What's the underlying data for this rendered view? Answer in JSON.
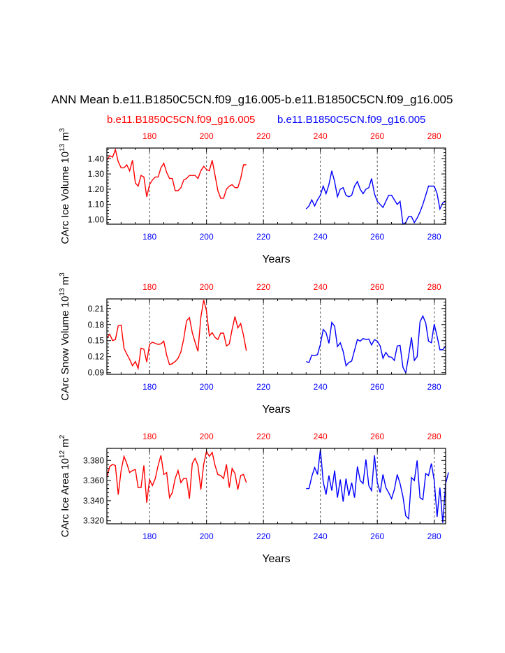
{
  "title": "ANN Mean b.e11.B1850C5CN.f09_g16.005-b.e11.B1850C5CN.f09_g16.005",
  "legend": {
    "case1": "b.e11.B1850C5CN.f09_g16.005",
    "case2": "b.e11.B1850C5CN.f09_g16.005"
  },
  "colors": {
    "case1": "#ff0000",
    "case2": "#0000ff",
    "axis": "#000000",
    "grid": "#555555"
  },
  "chart_data": [
    {
      "type": "line",
      "title": "",
      "ylabel": "CArc Ice Volume",
      "ylabel_unit": "10",
      "ylabel_exp": "13",
      "ylabel_unit2": "m",
      "ylabel_unit2_exp": "3",
      "xlabel": "Years",
      "xlim": [
        165,
        284
      ],
      "ylim": [
        0.97,
        1.47
      ],
      "yticks": [
        1.0,
        1.1,
        1.2,
        1.3,
        1.4
      ],
      "ytick_labels": [
        "1.00",
        "1.10",
        "1.20",
        "1.30",
        "1.40"
      ],
      "xticks": [
        180,
        200,
        220,
        240,
        260,
        280
      ],
      "xtick_labels": [
        "180",
        "200",
        "220",
        "240",
        "260",
        "280"
      ],
      "series": [
        {
          "name": "b.e11.B1850C5CN.f09_g16.005",
          "x_start": 165,
          "values": [
            1.39,
            1.42,
            1.41,
            1.46,
            1.38,
            1.34,
            1.34,
            1.36,
            1.32,
            1.39,
            1.24,
            1.22,
            1.29,
            1.28,
            1.15,
            1.23,
            1.26,
            1.28,
            1.28,
            1.34,
            1.37,
            1.31,
            1.27,
            1.27,
            1.19,
            1.19,
            1.21,
            1.26,
            1.27,
            1.29,
            1.29,
            1.29,
            1.27,
            1.32,
            1.35,
            1.33,
            1.32,
            1.39,
            1.29,
            1.19,
            1.14,
            1.14,
            1.2,
            1.22,
            1.23,
            1.21,
            1.21,
            1.27,
            1.36,
            1.36
          ]
        },
        {
          "name": "b.e11.B1850C5CN.f09_g16.005",
          "x_start": 235,
          "values": [
            1.07,
            1.09,
            1.13,
            1.09,
            1.13,
            1.16,
            1.22,
            1.17,
            1.23,
            1.32,
            1.25,
            1.15,
            1.2,
            1.21,
            1.16,
            1.15,
            1.16,
            1.22,
            1.25,
            1.2,
            1.17,
            1.2,
            1.21,
            1.27,
            1.17,
            1.12,
            1.1,
            1.08,
            1.12,
            1.16,
            1.16,
            1.13,
            1.1,
            1.12,
            0.97,
            0.98,
            1.02,
            1.02,
            0.98,
            1.01,
            1.05,
            1.1,
            1.16,
            1.22,
            1.22,
            1.22,
            1.17,
            1.07,
            1.11,
            1.12
          ]
        }
      ]
    },
    {
      "type": "line",
      "title": "",
      "ylabel": "CArc Snow Volume",
      "ylabel_unit": "10",
      "ylabel_exp": "13",
      "ylabel_unit2": "m",
      "ylabel_unit2_exp": "3",
      "xlabel": "Years",
      "xlim": [
        165,
        284
      ],
      "ylim": [
        0.087,
        0.228
      ],
      "yticks": [
        0.09,
        0.12,
        0.15,
        0.18,
        0.21
      ],
      "ytick_labels": [
        "0.09",
        "0.12",
        "0.15",
        "0.18",
        "0.21"
      ],
      "xticks": [
        180,
        200,
        220,
        240,
        260,
        280
      ],
      "xtick_labels": [
        "180",
        "200",
        "220",
        "240",
        "260",
        "280"
      ],
      "series": [
        {
          "name": "b.e11.B1850C5CN.f09_g16.005",
          "x_start": 165,
          "values": [
            0.155,
            0.162,
            0.15,
            0.152,
            0.178,
            0.179,
            0.136,
            0.125,
            0.115,
            0.103,
            0.111,
            0.098,
            0.136,
            0.134,
            0.11,
            0.143,
            0.147,
            0.145,
            0.143,
            0.144,
            0.149,
            0.123,
            0.105,
            0.107,
            0.111,
            0.117,
            0.129,
            0.153,
            0.187,
            0.193,
            0.165,
            0.147,
            0.13,
            0.193,
            0.226,
            0.206,
            0.159,
            0.165,
            0.156,
            0.152,
            0.164,
            0.164,
            0.14,
            0.144,
            0.171,
            0.195,
            0.174,
            0.182,
            0.16,
            0.131
          ]
        },
        {
          "name": "b.e11.B1850C5CN.f09_g16.005",
          "x_start": 235,
          "values": [
            0.111,
            0.109,
            0.123,
            0.122,
            0.124,
            0.143,
            0.171,
            0.165,
            0.145,
            0.184,
            0.177,
            0.139,
            0.146,
            0.13,
            0.103,
            0.109,
            0.112,
            0.132,
            0.152,
            0.149,
            0.154,
            0.152,
            0.153,
            0.142,
            0.152,
            0.149,
            0.14,
            0.117,
            0.128,
            0.12,
            0.119,
            0.113,
            0.14,
            0.141,
            0.1,
            0.09,
            0.121,
            0.156,
            0.113,
            0.12,
            0.185,
            0.196,
            0.183,
            0.149,
            0.146,
            0.181,
            0.158,
            0.133,
            0.133,
            0.14
          ]
        }
      ]
    },
    {
      "type": "line",
      "title": "",
      "ylabel": "CArc Ice Area",
      "ylabel_unit": "10",
      "ylabel_exp": "12",
      "ylabel_unit2": "m",
      "ylabel_unit2_exp": "2",
      "xlabel": "Years",
      "xlim": [
        165,
        284
      ],
      "ylim": [
        3.317,
        3.392
      ],
      "yticks": [
        3.32,
        3.34,
        3.36,
        3.38
      ],
      "ytick_labels": [
        "3.320",
        "3.340",
        "3.360",
        "3.380"
      ],
      "xticks": [
        180,
        200,
        220,
        240,
        260,
        280
      ],
      "xtick_labels": [
        "180",
        "200",
        "220",
        "240",
        "260",
        "280"
      ],
      "series": [
        {
          "name": "b.e11.B1850C5CN.f09_g16.005",
          "x_start": 165,
          "values": [
            3.363,
            3.374,
            3.376,
            3.375,
            3.346,
            3.37,
            3.384,
            3.377,
            3.368,
            3.37,
            3.371,
            3.353,
            3.353,
            3.375,
            3.338,
            3.361,
            3.355,
            3.362,
            3.375,
            3.385,
            3.366,
            3.368,
            3.343,
            3.348,
            3.362,
            3.37,
            3.358,
            3.362,
            3.362,
            3.342,
            3.377,
            3.382,
            3.375,
            3.351,
            3.376,
            3.389,
            3.384,
            3.388,
            3.375,
            3.366,
            3.365,
            3.362,
            3.376,
            3.353,
            3.372,
            3.367,
            3.351,
            3.365,
            3.366,
            3.358
          ]
        },
        {
          "name": "b.e11.B1850C5CN.f09_g16.005",
          "x_start": 235,
          "values": [
            3.352,
            3.352,
            3.364,
            3.373,
            3.366,
            3.391,
            3.359,
            3.346,
            3.365,
            3.35,
            3.37,
            3.343,
            3.361,
            3.339,
            3.362,
            3.345,
            3.358,
            3.343,
            3.374,
            3.36,
            3.357,
            3.381,
            3.355,
            3.35,
            3.385,
            3.358,
            3.348,
            3.366,
            3.353,
            3.348,
            3.342,
            3.351,
            3.366,
            3.357,
            3.344,
            3.325,
            3.322,
            3.363,
            3.36,
            3.38,
            3.343,
            3.341,
            3.367,
            3.365,
            3.377,
            3.36,
            3.324,
            3.353,
            3.318,
            3.357,
            3.368
          ]
        }
      ]
    }
  ]
}
